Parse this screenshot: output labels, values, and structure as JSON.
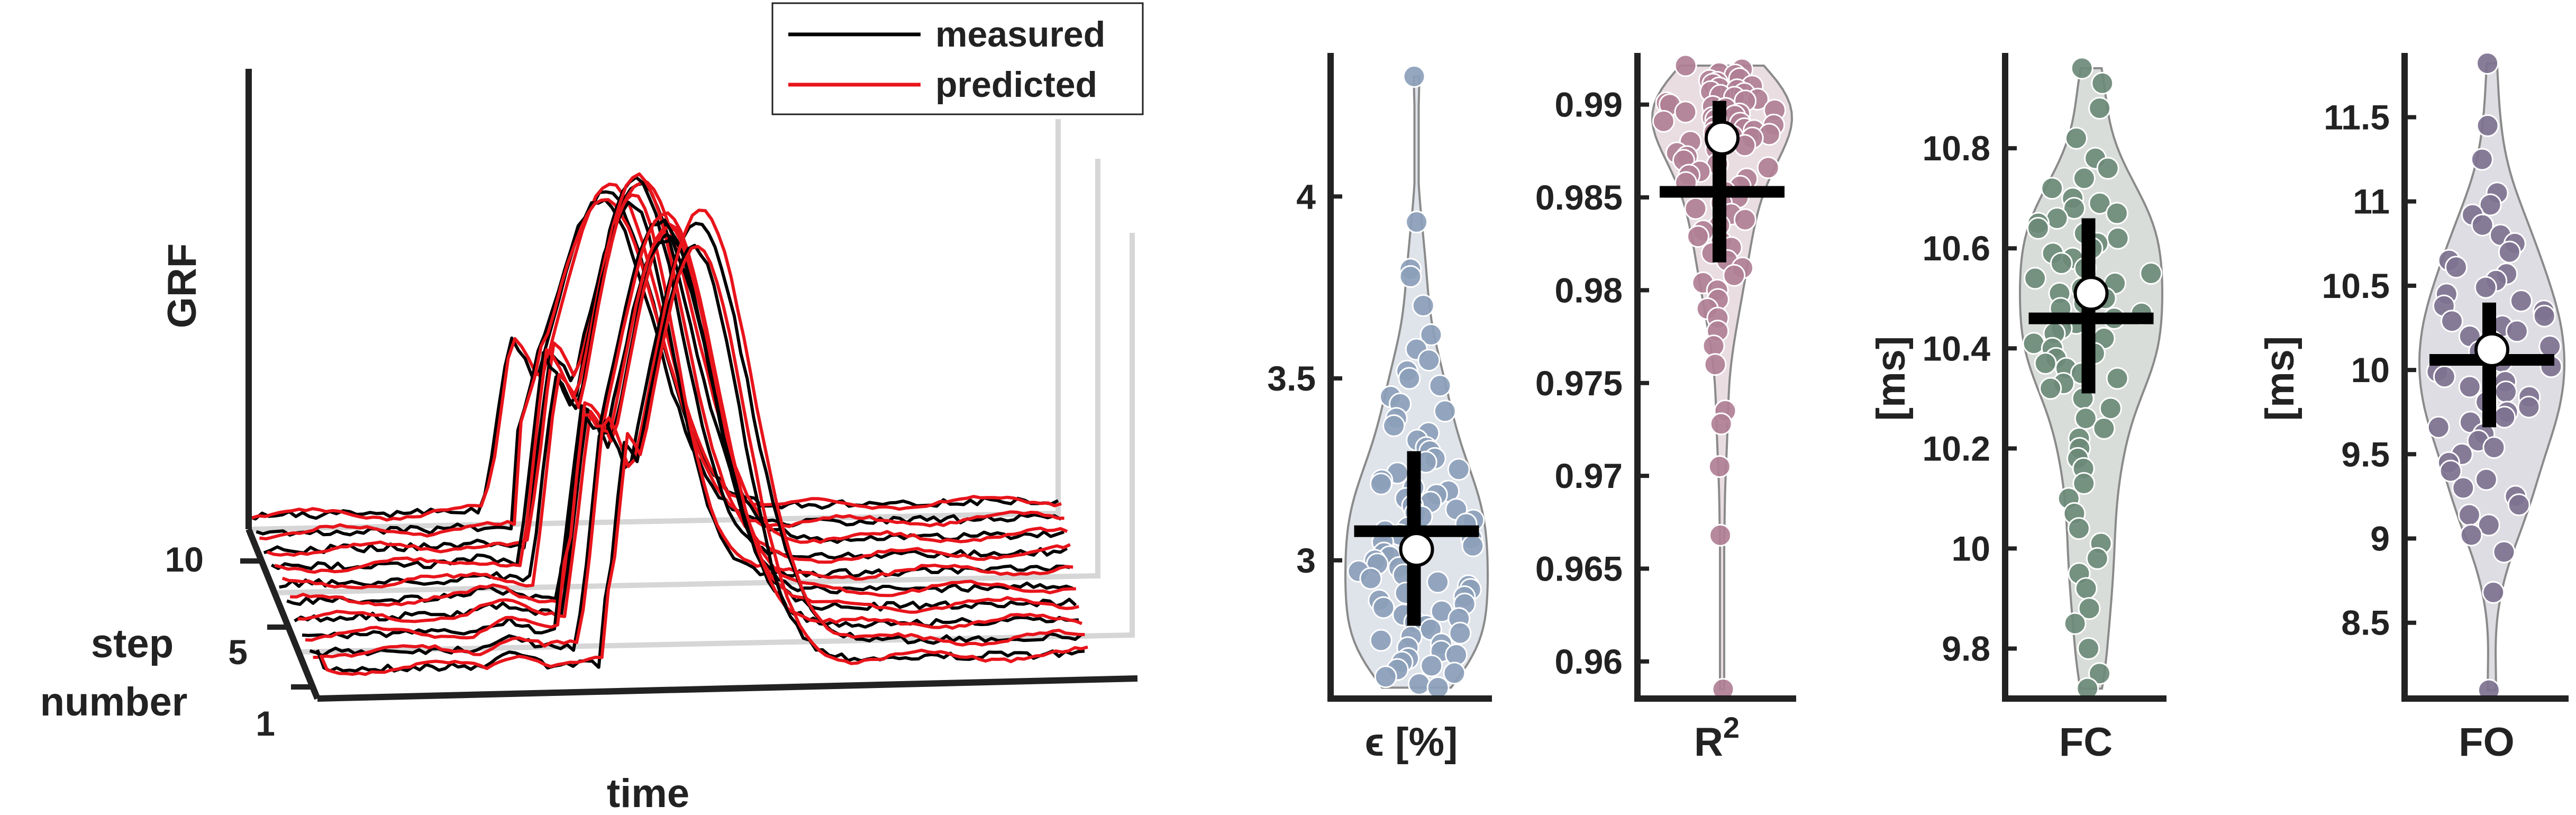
{
  "chart_data": [
    {
      "type": "line",
      "title": "",
      "xlabel": "time",
      "ylabel": "GRF",
      "zlabel": [
        "step",
        "number"
      ],
      "step_ticks": [
        "1",
        "5",
        "10"
      ],
      "legend": {
        "placement": "top-center",
        "entries": [
          {
            "label": "measured",
            "color": "#000000"
          },
          {
            "label": "predicted",
            "color": "#e8141b"
          }
        ]
      },
      "n_steps": 10
    },
    {
      "type": "violin",
      "xlabel": "ϵ [%]",
      "ylabel": "",
      "ylim": [
        2.62,
        4.38
      ],
      "yticks": [
        3,
        3.5,
        4
      ],
      "ytick_labels": [
        "3",
        "3.5",
        "4"
      ],
      "fill": "#dfe3ea",
      "marker": "#8c9fba",
      "mean": 3.03,
      "median": 3.08,
      "q1": 2.82,
      "q3": 3.3,
      "points": [
        4.33,
        3.93,
        3.8,
        3.78,
        3.7,
        3.62,
        3.58,
        3.55,
        3.52,
        3.5,
        3.48,
        3.45,
        3.43,
        3.41,
        3.39,
        3.37,
        3.35,
        3.33,
        3.31,
        3.3,
        3.28,
        3.27,
        3.25,
        3.24,
        3.22,
        3.21,
        3.2,
        3.19,
        3.18,
        3.17,
        3.16,
        3.15,
        3.14,
        3.13,
        3.12,
        3.11,
        3.1,
        3.09,
        3.08,
        3.07,
        3.06,
        3.05,
        3.04,
        3.03,
        3.02,
        3.01,
        3.0,
        2.99,
        2.98,
        2.97,
        2.96,
        2.95,
        2.94,
        2.93,
        2.92,
        2.91,
        2.9,
        2.89,
        2.88,
        2.87,
        2.86,
        2.85,
        2.84,
        2.83,
        2.82,
        2.81,
        2.8,
        2.79,
        2.78,
        2.77,
        2.76,
        2.75,
        2.74,
        2.73,
        2.72,
        2.71,
        2.7,
        2.69,
        2.68,
        2.66,
        2.65
      ]
    },
    {
      "type": "violin",
      "xlabel": "R",
      "xlabel_sup": "2",
      "ylabel": "",
      "ylim": [
        0.958,
        0.9925
      ],
      "yticks": [
        0.96,
        0.965,
        0.97,
        0.975,
        0.98,
        0.985,
        0.99
      ],
      "ytick_labels": [
        "0.96",
        "0.965",
        "0.97",
        "0.975",
        "0.98",
        "0.985",
        "0.99"
      ],
      "fill": "#e9dde2",
      "marker": "#b07f95",
      "mean": 0.9882,
      "median": 0.9853,
      "q1": 0.9815,
      "q3": 0.9902,
      "points": [
        0.9921,
        0.9919,
        0.9917,
        0.9916,
        0.9914,
        0.9913,
        0.9912,
        0.9911,
        0.991,
        0.9909,
        0.9908,
        0.9907,
        0.9906,
        0.9905,
        0.9904,
        0.9903,
        0.9902,
        0.9901,
        0.99,
        0.9899,
        0.9898,
        0.9897,
        0.9896,
        0.9895,
        0.9894,
        0.9893,
        0.9892,
        0.9891,
        0.989,
        0.9889,
        0.9888,
        0.9887,
        0.9886,
        0.9885,
        0.9884,
        0.9883,
        0.9882,
        0.988,
        0.9878,
        0.9876,
        0.9874,
        0.9872,
        0.987,
        0.9868,
        0.9866,
        0.9864,
        0.9862,
        0.986,
        0.9858,
        0.9856,
        0.9853,
        0.985,
        0.9847,
        0.9844,
        0.9841,
        0.9838,
        0.9835,
        0.9832,
        0.9829,
        0.9826,
        0.9823,
        0.982,
        0.9816,
        0.9812,
        0.9808,
        0.9804,
        0.98,
        0.9795,
        0.979,
        0.9785,
        0.9778,
        0.977,
        0.976,
        0.9735,
        0.9728,
        0.9705,
        0.9668,
        0.9585
      ]
    },
    {
      "type": "violin",
      "xlabel": "FC",
      "ylabel": "[ms]",
      "ylim": [
        9.7,
        10.98
      ],
      "yticks": [
        9.8,
        10,
        10.2,
        10.4,
        10.6,
        10.8
      ],
      "ytick_labels": [
        "9.8",
        "10",
        "10.2",
        "10.4",
        "10.6",
        "10.8"
      ],
      "fill": "#d9ddd9",
      "marker": "#6d8a78",
      "mean": 10.51,
      "median": 10.46,
      "q1": 10.31,
      "q3": 10.66,
      "points": [
        10.96,
        10.93,
        10.88,
        10.82,
        10.78,
        10.76,
        10.74,
        10.72,
        10.7,
        10.69,
        10.68,
        10.67,
        10.66,
        10.65,
        10.64,
        10.63,
        10.62,
        10.61,
        10.6,
        10.59,
        10.58,
        10.57,
        10.56,
        10.55,
        10.54,
        10.53,
        10.52,
        10.51,
        10.5,
        10.49,
        10.48,
        10.47,
        10.46,
        10.45,
        10.44,
        10.43,
        10.42,
        10.41,
        10.4,
        10.39,
        10.38,
        10.37,
        10.36,
        10.35,
        10.34,
        10.33,
        10.32,
        10.3,
        10.28,
        10.26,
        10.24,
        10.22,
        10.2,
        10.18,
        10.16,
        10.13,
        10.1,
        10.07,
        10.04,
        10.01,
        9.98,
        9.95,
        9.92,
        9.88,
        9.85,
        9.8,
        9.75,
        9.72
      ]
    },
    {
      "type": "violin",
      "xlabel": "FO",
      "ylabel": "[ms]",
      "ylim": [
        8.05,
        11.85
      ],
      "yticks": [
        8.5,
        9,
        9.5,
        10,
        10.5,
        11,
        11.5
      ],
      "ytick_labels": [
        "8.5",
        "9",
        "9.5",
        "10",
        "10.5",
        "11",
        "11.5"
      ],
      "fill": "#dedde3",
      "marker": "#7e7290",
      "mean": 10.12,
      "median": 10.06,
      "q1": 9.66,
      "q3": 10.4,
      "points": [
        11.82,
        11.45,
        11.25,
        11.05,
        10.98,
        10.92,
        10.86,
        10.8,
        10.75,
        10.7,
        10.65,
        10.61,
        10.57,
        10.53,
        10.49,
        10.45,
        10.41,
        10.38,
        10.35,
        10.32,
        10.29,
        10.26,
        10.23,
        10.2,
        10.17,
        10.14,
        10.11,
        10.08,
        10.05,
        10.02,
        9.99,
        9.96,
        9.93,
        9.9,
        9.87,
        9.84,
        9.81,
        9.78,
        9.75,
        9.72,
        9.69,
        9.66,
        9.62,
        9.58,
        9.54,
        9.5,
        9.45,
        9.4,
        9.35,
        9.3,
        9.25,
        9.2,
        9.14,
        9.08,
        9.02,
        8.92,
        8.68,
        8.1
      ]
    }
  ]
}
